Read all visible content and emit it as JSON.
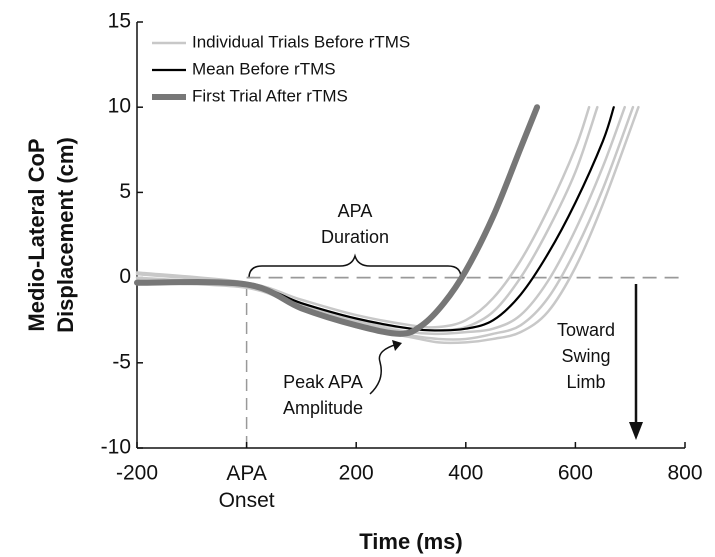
{
  "chart_data": {
    "type": "line",
    "xlabel": "Time (ms)",
    "ylabel": [
      "Medio-Lateral CoP",
      "Displacement (cm)"
    ],
    "xlim": [
      -200,
      800
    ],
    "xticks": [
      -200,
      {
        "value": 0,
        "label": "APA Onset"
      },
      200,
      400,
      600,
      800
    ],
    "ylim": [
      -10,
      15
    ],
    "yticks": [
      -10,
      -5,
      0,
      5,
      10,
      15
    ],
    "hline": 0,
    "vline": 0,
    "legend": "upper left",
    "series": [
      {
        "name": "Individual Trials Before rTMS",
        "color": "#c8c8c8",
        "x": [
          -200,
          0,
          100,
          200,
          300,
          350,
          400,
          450,
          500,
          550,
          600,
          625
        ],
        "values": [
          0.3,
          -0.3,
          -1.3,
          -2.2,
          -2.8,
          -2.9,
          -2.5,
          -1.2,
          1.0,
          4.0,
          7.6,
          10
        ]
      },
      {
        "name": null,
        "color": "#c8c8c8",
        "x": [
          -200,
          0,
          100,
          200,
          300,
          350,
          400,
          450,
          500,
          550,
          600,
          640
        ],
        "values": [
          0.2,
          -0.4,
          -1.5,
          -2.5,
          -3.0,
          -3.1,
          -2.9,
          -2.0,
          0.0,
          2.8,
          6.2,
          10
        ]
      },
      {
        "name": null,
        "color": "#c8c8c8",
        "x": [
          -200,
          0,
          100,
          200,
          300,
          350,
          400,
          450,
          500,
          550,
          600,
          650,
          690
        ],
        "values": [
          0.0,
          -0.5,
          -1.6,
          -2.6,
          -3.2,
          -3.3,
          -3.2,
          -3.0,
          -2.2,
          -0.2,
          2.8,
          6.5,
          10
        ]
      },
      {
        "name": null,
        "color": "#c8c8c8",
        "x": [
          -200,
          0,
          100,
          200,
          300,
          350,
          400,
          450,
          500,
          550,
          600,
          650,
          705
        ],
        "values": [
          -0.1,
          -0.5,
          -1.7,
          -2.8,
          -3.4,
          -3.6,
          -3.6,
          -3.3,
          -2.8,
          -1.2,
          1.6,
          5.2,
          10
        ]
      },
      {
        "name": null,
        "color": "#c8c8c8",
        "x": [
          -200,
          0,
          100,
          200,
          300,
          350,
          400,
          450,
          500,
          550,
          600,
          650,
          715
        ],
        "values": [
          -0.3,
          -0.6,
          -1.8,
          -2.9,
          -3.5,
          -3.8,
          -3.8,
          -3.6,
          -3.2,
          -2.0,
          0.6,
          4.3,
          10
        ]
      },
      {
        "name": "Mean Before rTMS",
        "color": "#000000",
        "x": [
          -200,
          0,
          100,
          200,
          300,
          350,
          400,
          450,
          500,
          550,
          600,
          650,
          670
        ],
        "values": [
          -0.2,
          -0.4,
          -1.5,
          -2.4,
          -3.0,
          -3.1,
          -3.0,
          -2.5,
          -1.0,
          1.4,
          4.4,
          8.0,
          10
        ]
      },
      {
        "name": "First Trial After rTMS",
        "color": "#777777",
        "x": [
          -200,
          0,
          100,
          200,
          280,
          320,
          360,
          400,
          450,
          500,
          530
        ],
        "values": [
          -0.3,
          -0.4,
          -1.8,
          -2.8,
          -3.3,
          -2.8,
          -1.5,
          0.4,
          3.6,
          7.6,
          10
        ]
      }
    ],
    "annotations": {
      "duration": [
        "APA",
        "Duration"
      ],
      "peak": [
        "Peak APA",
        "Amplitude"
      ],
      "toward": [
        "Toward",
        "Swing",
        "Limb"
      ]
    }
  }
}
